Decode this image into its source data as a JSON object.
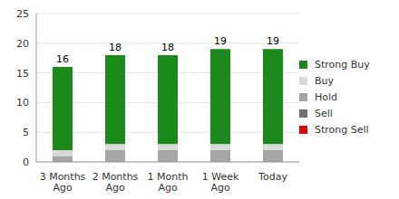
{
  "chart_data": {
    "type": "bar",
    "stacked": true,
    "categories": [
      "3 Months Ago",
      "2 Months Ago",
      "1 Month Ago",
      "1 Week Ago",
      "Today"
    ],
    "series": [
      {
        "name": "Strong Buy",
        "color": "#1a8a1a",
        "values": [
          14,
          15,
          15,
          16,
          16
        ]
      },
      {
        "name": "Buy",
        "color": "#d9d9d9",
        "values": [
          1,
          1,
          1,
          1,
          1
        ]
      },
      {
        "name": "Hold",
        "color": "#a6a6a6",
        "values": [
          1,
          2,
          2,
          2,
          2
        ]
      },
      {
        "name": "Sell",
        "color": "#707070",
        "values": [
          0,
          0,
          0,
          0,
          0
        ]
      },
      {
        "name": "Strong Sell",
        "color": "#e00000",
        "values": [
          0,
          0,
          0,
          0,
          0
        ]
      }
    ],
    "totals": [
      16,
      18,
      18,
      19,
      19
    ],
    "ylim": [
      0,
      25
    ],
    "yticks": [
      0,
      5,
      10,
      15,
      20,
      25
    ],
    "grid": true,
    "legend": "right"
  }
}
